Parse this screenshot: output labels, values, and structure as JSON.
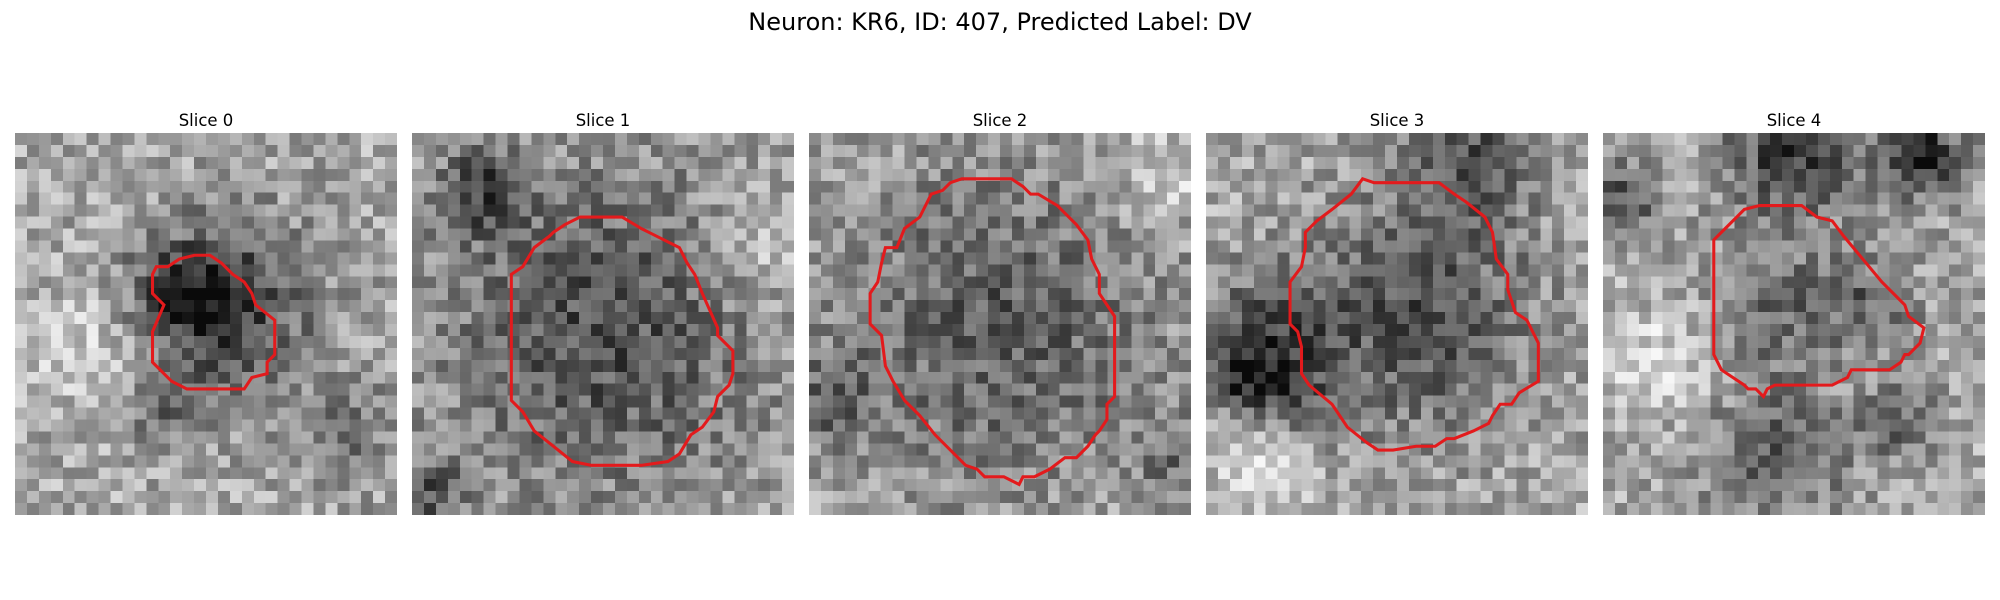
{
  "figure": {
    "title": "Neuron: KR6, ID: 407, Predicted Label: DV"
  },
  "panels": [
    {
      "title": "Slice 0",
      "seed": 11,
      "blobs": [
        [
          0.55,
          0.45,
          0.16,
          -0.45
        ],
        [
          0.42,
          0.42,
          0.08,
          -0.3
        ],
        [
          0.4,
          0.72,
          0.07,
          -0.25
        ],
        [
          0.86,
          0.78,
          0.1,
          -0.2
        ],
        [
          0.2,
          0.55,
          0.12,
          0.15
        ]
      ],
      "contour": [
        [
          0.39,
          0.45
        ],
        [
          0.36,
          0.42
        ],
        [
          0.36,
          0.37
        ],
        [
          0.37,
          0.35
        ],
        [
          0.4,
          0.35
        ],
        [
          0.43,
          0.33
        ],
        [
          0.47,
          0.32
        ],
        [
          0.51,
          0.32
        ],
        [
          0.54,
          0.34
        ],
        [
          0.57,
          0.37
        ],
        [
          0.6,
          0.39
        ],
        [
          0.62,
          0.42
        ],
        [
          0.63,
          0.45
        ],
        [
          0.68,
          0.49
        ],
        [
          0.68,
          0.58
        ],
        [
          0.66,
          0.6
        ],
        [
          0.66,
          0.63
        ],
        [
          0.62,
          0.64
        ],
        [
          0.6,
          0.67
        ],
        [
          0.52,
          0.67
        ],
        [
          0.45,
          0.67
        ],
        [
          0.41,
          0.65
        ],
        [
          0.39,
          0.63
        ],
        [
          0.36,
          0.6
        ],
        [
          0.36,
          0.52
        ]
      ]
    },
    {
      "seed": 23,
      "title": "Slice 1",
      "blobs": [
        [
          0.5,
          0.52,
          0.3,
          -0.35
        ],
        [
          0.18,
          0.15,
          0.08,
          -0.35
        ],
        [
          0.05,
          0.95,
          0.07,
          -0.3
        ],
        [
          0.92,
          0.3,
          0.1,
          0.2
        ]
      ],
      "contour": [
        [
          0.26,
          0.37
        ],
        [
          0.29,
          0.35
        ],
        [
          0.32,
          0.3
        ],
        [
          0.36,
          0.27
        ],
        [
          0.37,
          0.26
        ],
        [
          0.4,
          0.24
        ],
        [
          0.44,
          0.22
        ],
        [
          0.46,
          0.22
        ],
        [
          0.55,
          0.22
        ],
        [
          0.6,
          0.25
        ],
        [
          0.62,
          0.26
        ],
        [
          0.7,
          0.3
        ],
        [
          0.72,
          0.34
        ],
        [
          0.74,
          0.37
        ],
        [
          0.76,
          0.42
        ],
        [
          0.8,
          0.51
        ],
        [
          0.8,
          0.53
        ],
        [
          0.84,
          0.57
        ],
        [
          0.84,
          0.63
        ],
        [
          0.83,
          0.66
        ],
        [
          0.8,
          0.69
        ],
        [
          0.79,
          0.73
        ],
        [
          0.76,
          0.77
        ],
        [
          0.73,
          0.79
        ],
        [
          0.7,
          0.84
        ],
        [
          0.67,
          0.86
        ],
        [
          0.6,
          0.87
        ],
        [
          0.47,
          0.87
        ],
        [
          0.42,
          0.86
        ],
        [
          0.37,
          0.82
        ],
        [
          0.32,
          0.78
        ],
        [
          0.29,
          0.73
        ],
        [
          0.26,
          0.7
        ],
        [
          0.26,
          0.5
        ],
        [
          0.26,
          0.42
        ]
      ]
    },
    {
      "seed": 37,
      "title": "Slice 2",
      "blobs": [
        [
          0.5,
          0.5,
          0.3,
          -0.3
        ],
        [
          0.05,
          0.7,
          0.09,
          -0.25
        ],
        [
          0.95,
          0.85,
          0.07,
          -0.2
        ],
        [
          0.92,
          0.12,
          0.08,
          0.2
        ]
      ],
      "contour": [
        [
          0.23,
          0.3
        ],
        [
          0.25,
          0.25
        ],
        [
          0.29,
          0.22
        ],
        [
          0.32,
          0.16
        ],
        [
          0.35,
          0.15
        ],
        [
          0.37,
          0.13
        ],
        [
          0.4,
          0.12
        ],
        [
          0.44,
          0.12
        ],
        [
          0.53,
          0.12
        ],
        [
          0.56,
          0.14
        ],
        [
          0.58,
          0.16
        ],
        [
          0.6,
          0.16
        ],
        [
          0.65,
          0.19
        ],
        [
          0.7,
          0.24
        ],
        [
          0.73,
          0.28
        ],
        [
          0.74,
          0.33
        ],
        [
          0.76,
          0.37
        ],
        [
          0.76,
          0.42
        ],
        [
          0.8,
          0.48
        ],
        [
          0.8,
          0.69
        ],
        [
          0.78,
          0.71
        ],
        [
          0.78,
          0.75
        ],
        [
          0.76,
          0.78
        ],
        [
          0.75,
          0.79
        ],
        [
          0.73,
          0.82
        ],
        [
          0.7,
          0.85
        ],
        [
          0.67,
          0.85
        ],
        [
          0.63,
          0.88
        ],
        [
          0.59,
          0.9
        ],
        [
          0.56,
          0.9
        ],
        [
          0.55,
          0.92
        ],
        [
          0.51,
          0.9
        ],
        [
          0.48,
          0.9
        ],
        [
          0.46,
          0.9
        ],
        [
          0.44,
          0.88
        ],
        [
          0.41,
          0.87
        ],
        [
          0.37,
          0.83
        ],
        [
          0.33,
          0.79
        ],
        [
          0.29,
          0.74
        ],
        [
          0.25,
          0.7
        ],
        [
          0.22,
          0.65
        ],
        [
          0.2,
          0.61
        ],
        [
          0.19,
          0.53
        ],
        [
          0.16,
          0.5
        ],
        [
          0.16,
          0.42
        ],
        [
          0.18,
          0.39
        ],
        [
          0.19,
          0.34
        ],
        [
          0.2,
          0.3
        ]
      ]
    },
    {
      "seed": 53,
      "title": "Slice 3",
      "blobs": [
        [
          0.55,
          0.48,
          0.22,
          -0.35
        ],
        [
          0.15,
          0.55,
          0.12,
          -0.35
        ],
        [
          0.1,
          0.65,
          0.06,
          -0.3
        ],
        [
          0.7,
          0.05,
          0.12,
          -0.3
        ],
        [
          0.22,
          0.72,
          0.08,
          -0.2
        ],
        [
          0.15,
          0.85,
          0.1,
          0.25
        ]
      ],
      "contour": [
        [
          0.26,
          0.26
        ],
        [
          0.29,
          0.23
        ],
        [
          0.33,
          0.2
        ],
        [
          0.38,
          0.16
        ],
        [
          0.41,
          0.12
        ],
        [
          0.44,
          0.13
        ],
        [
          0.51,
          0.13
        ],
        [
          0.61,
          0.13
        ],
        [
          0.65,
          0.16
        ],
        [
          0.68,
          0.18
        ],
        [
          0.73,
          0.22
        ],
        [
          0.75,
          0.26
        ],
        [
          0.76,
          0.33
        ],
        [
          0.79,
          0.37
        ],
        [
          0.79,
          0.41
        ],
        [
          0.81,
          0.47
        ],
        [
          0.84,
          0.49
        ],
        [
          0.87,
          0.55
        ],
        [
          0.87,
          0.63
        ],
        [
          0.87,
          0.65
        ],
        [
          0.82,
          0.68
        ],
        [
          0.8,
          0.71
        ],
        [
          0.77,
          0.71
        ],
        [
          0.75,
          0.74
        ],
        [
          0.74,
          0.76
        ],
        [
          0.7,
          0.78
        ],
        [
          0.65,
          0.8
        ],
        [
          0.63,
          0.8
        ],
        [
          0.6,
          0.82
        ],
        [
          0.55,
          0.82
        ],
        [
          0.49,
          0.83
        ],
        [
          0.45,
          0.83
        ],
        [
          0.42,
          0.81
        ],
        [
          0.37,
          0.77
        ],
        [
          0.33,
          0.71
        ],
        [
          0.27,
          0.66
        ],
        [
          0.25,
          0.63
        ],
        [
          0.25,
          0.56
        ],
        [
          0.24,
          0.52
        ],
        [
          0.22,
          0.5
        ],
        [
          0.22,
          0.39
        ],
        [
          0.25,
          0.35
        ],
        [
          0.26,
          0.3
        ]
      ]
    },
    {
      "seed": 71,
      "title": "Slice 4",
      "blobs": [
        [
          0.5,
          0.05,
          0.12,
          -0.45
        ],
        [
          0.83,
          0.05,
          0.08,
          -0.5
        ],
        [
          0.05,
          0.18,
          0.07,
          -0.35
        ],
        [
          0.45,
          0.45,
          0.12,
          -0.25
        ],
        [
          0.7,
          0.45,
          0.09,
          -0.25
        ],
        [
          0.45,
          0.85,
          0.13,
          -0.3
        ],
        [
          0.78,
          0.75,
          0.08,
          -0.25
        ],
        [
          0.15,
          0.6,
          0.1,
          0.2
        ]
      ],
      "contour": [
        [
          0.29,
          0.28
        ],
        [
          0.32,
          0.25
        ],
        [
          0.35,
          0.22
        ],
        [
          0.37,
          0.2
        ],
        [
          0.41,
          0.19
        ],
        [
          0.45,
          0.19
        ],
        [
          0.52,
          0.19
        ],
        [
          0.56,
          0.22
        ],
        [
          0.6,
          0.23
        ],
        [
          0.63,
          0.27
        ],
        [
          0.68,
          0.33
        ],
        [
          0.73,
          0.39
        ],
        [
          0.77,
          0.43
        ],
        [
          0.79,
          0.45
        ],
        [
          0.8,
          0.48
        ],
        [
          0.84,
          0.51
        ],
        [
          0.83,
          0.55
        ],
        [
          0.8,
          0.58
        ],
        [
          0.79,
          0.58
        ],
        [
          0.78,
          0.6
        ],
        [
          0.75,
          0.62
        ],
        [
          0.67,
          0.62
        ],
        [
          0.65,
          0.62
        ],
        [
          0.64,
          0.64
        ],
        [
          0.62,
          0.65
        ],
        [
          0.6,
          0.66
        ],
        [
          0.55,
          0.66
        ],
        [
          0.47,
          0.66
        ],
        [
          0.45,
          0.66
        ],
        [
          0.43,
          0.67
        ],
        [
          0.42,
          0.69
        ],
        [
          0.4,
          0.67
        ],
        [
          0.38,
          0.67
        ],
        [
          0.37,
          0.66
        ],
        [
          0.34,
          0.64
        ],
        [
          0.31,
          0.62
        ],
        [
          0.29,
          0.58
        ],
        [
          0.29,
          0.47
        ],
        [
          0.29,
          0.38
        ]
      ]
    }
  ],
  "style": {
    "contour_color": "#e31a1c"
  }
}
